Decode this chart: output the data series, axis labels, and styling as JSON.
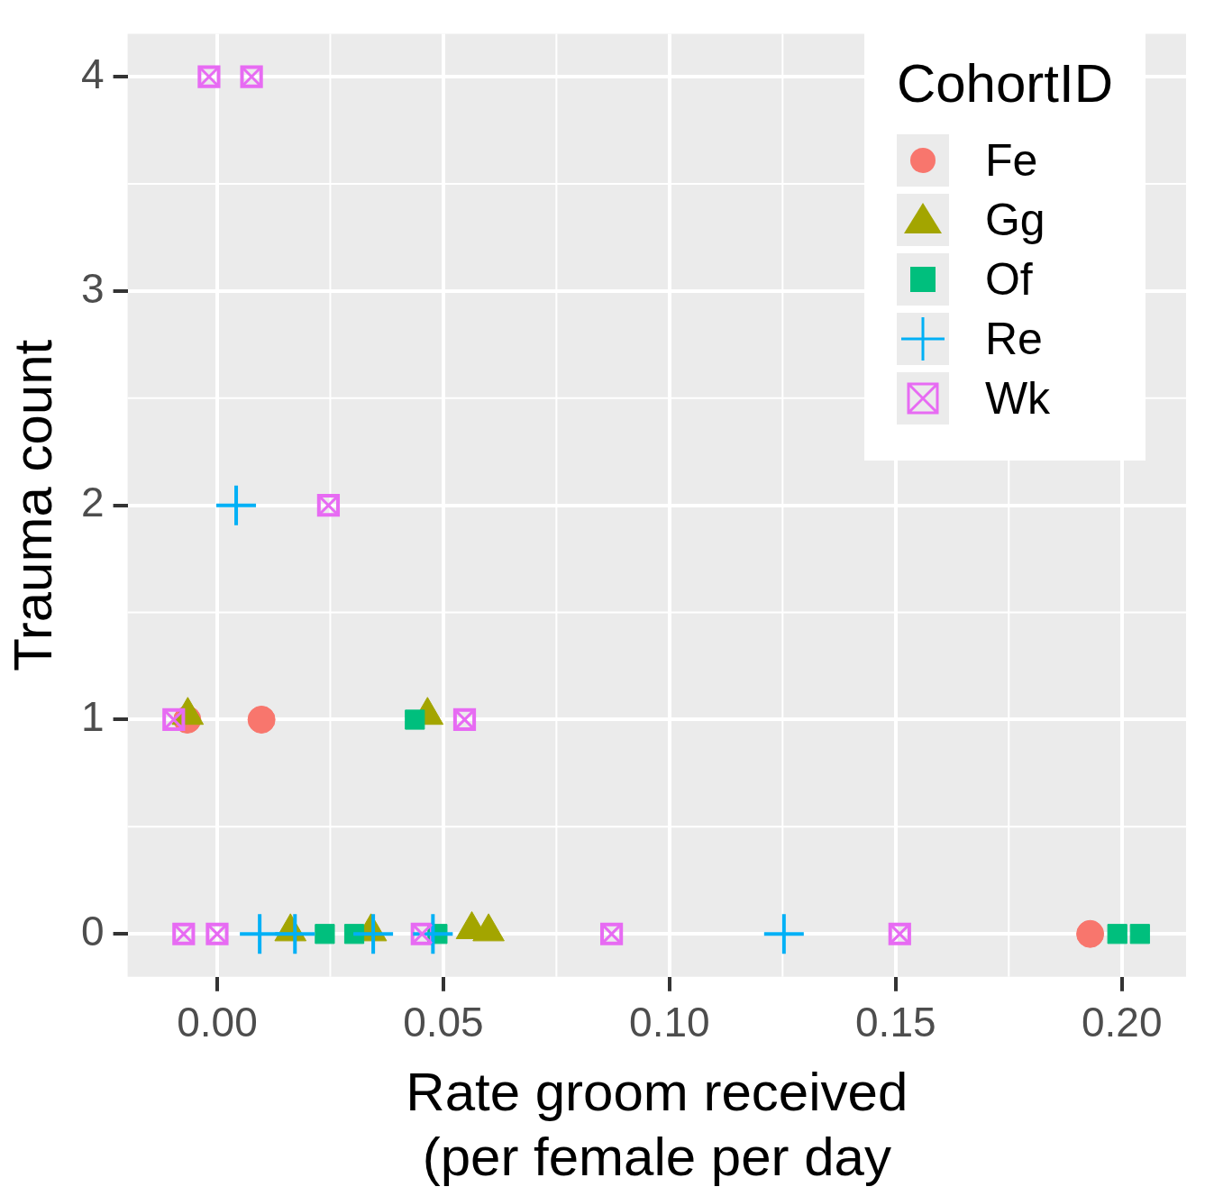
{
  "chart_data": {
    "type": "scatter",
    "xlabel": "Rate groom received\n(per female per day",
    "ylabel": "Trauma count",
    "legend_title": "CohortID",
    "xlim": [
      -0.0198,
      0.2142
    ],
    "xticks": [
      {
        "value": 0,
        "label": "0.00"
      },
      {
        "value": 0.05,
        "label": "0.05"
      },
      {
        "value": 0.1,
        "label": "0.10"
      },
      {
        "value": 0.15,
        "label": "0.15"
      },
      {
        "value": 0.2,
        "label": "0.20"
      }
    ],
    "ylim": [
      -0.2,
      4.2
    ],
    "yticks": [
      0,
      1,
      2,
      3,
      4
    ],
    "grid": true,
    "legend": "top right",
    "series": [
      {
        "name": "Fe",
        "color": "#f8766d",
        "marker": "circle",
        "x": [
          -0.0066,
          0.0098,
          0.193
        ],
        "values": [
          1,
          1,
          0
        ]
      },
      {
        "name": "Gg",
        "color": "#a3a500",
        "marker": "triangle",
        "x": [
          -0.0065,
          0.0465,
          0.0162,
          0.034,
          0.0563,
          0.06
        ],
        "values": [
          1.02,
          1.02,
          0.01,
          0.01,
          0.02,
          0.01
        ]
      },
      {
        "name": "Of",
        "color": "#00bf7d",
        "marker": "square",
        "x": [
          0.0437,
          0.0238,
          0.0303,
          0.0487,
          0.199,
          0.204
        ],
        "values": [
          1,
          0,
          0,
          0,
          0,
          0
        ]
      },
      {
        "name": "Re",
        "color": "#00b0f6",
        "marker": "cross",
        "x": [
          0.0042,
          0.0094,
          0.0172,
          0.0345,
          0.0477,
          0.1253
        ],
        "values": [
          2,
          0,
          0,
          0,
          0,
          0
        ]
      },
      {
        "name": "Wk",
        "color": "#e76bf3",
        "marker": "square",
        "x": [
          -0.0018,
          0.0076,
          0.0246,
          -0.0096,
          0.0547,
          -0.0074,
          0,
          0.0453,
          0.0872,
          0.1509
        ],
        "values": [
          4,
          4,
          2,
          1,
          1,
          0,
          0,
          0,
          0,
          0
        ]
      }
    ]
  }
}
